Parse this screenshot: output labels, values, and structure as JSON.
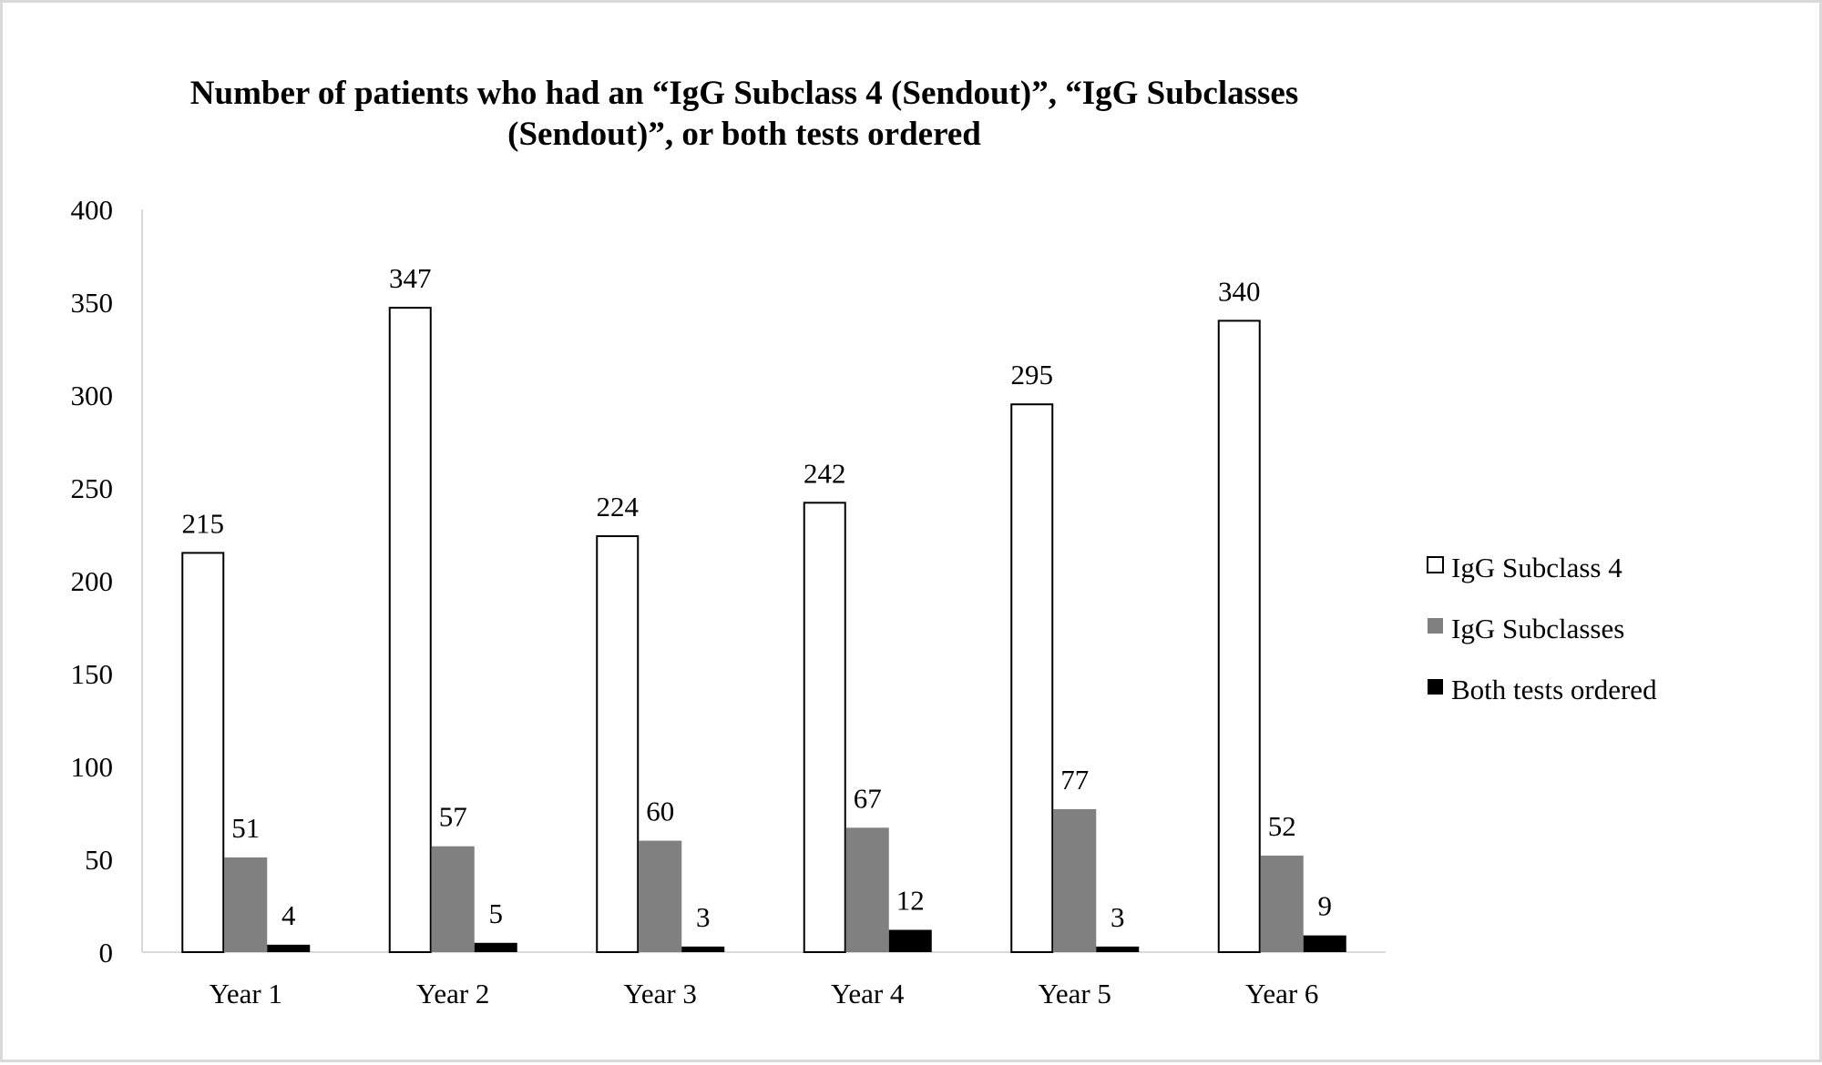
{
  "chart_data": {
    "type": "bar",
    "title": [
      "Number of patients who had an “IgG Subclass 4 (Sendout)”, “IgG Subclasses",
      "(Sendout)”, or both tests ordered"
    ],
    "xlabel": "",
    "ylabel": "",
    "ylim": [
      0,
      400
    ],
    "yticks": [
      0,
      50,
      100,
      150,
      200,
      250,
      300,
      350,
      400
    ],
    "grid": false,
    "legend_position": "right",
    "categories": [
      "Year 1",
      "Year 2",
      "Year 3",
      "Year 4",
      "Year 5",
      "Year 6"
    ],
    "series": [
      {
        "name": "IgG Subclass 4",
        "values": [
          215,
          347,
          224,
          242,
          295,
          340
        ],
        "color": "#ffffff",
        "stroke": "#000000"
      },
      {
        "name": "IgG Subclasses",
        "values": [
          51,
          57,
          60,
          67,
          77,
          52
        ],
        "color": "#808080",
        "stroke": "none"
      },
      {
        "name": "Both tests ordered",
        "values": [
          4,
          5,
          3,
          12,
          3,
          9
        ],
        "color": "#000000",
        "stroke": "none"
      }
    ]
  }
}
